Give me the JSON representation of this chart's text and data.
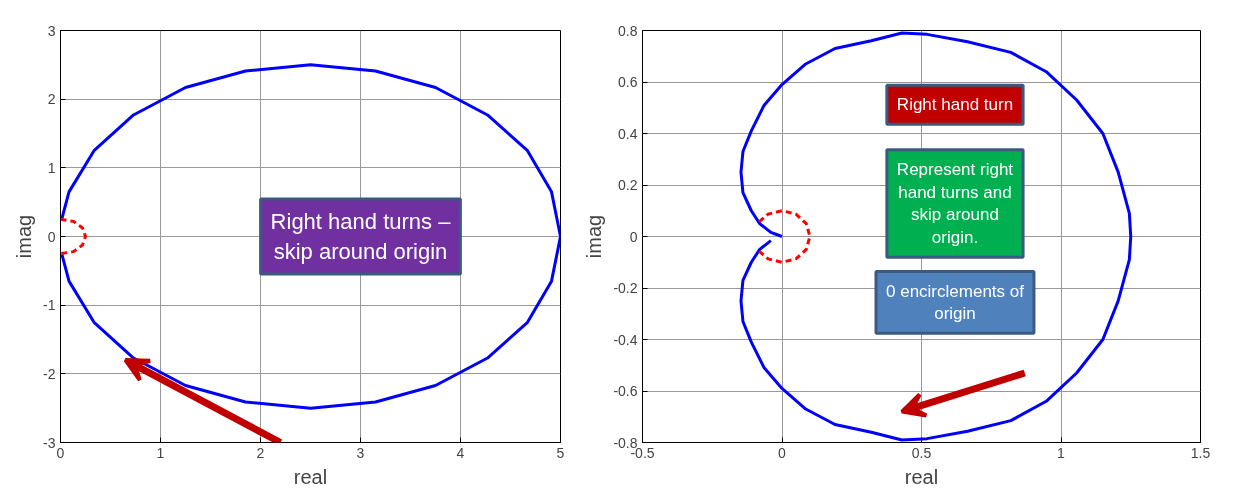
{
  "chart_data": [
    {
      "type": "line",
      "xlabel": "real",
      "ylabel": "imag",
      "xlim": [
        0,
        5
      ],
      "ylim": [
        -3,
        3
      ],
      "xticks": [
        0,
        1,
        2,
        3,
        4,
        5
      ],
      "yticks": [
        -3,
        -2,
        -1,
        0,
        1,
        2,
        3
      ],
      "grid": true,
      "series": [
        {
          "color": "#0000ff",
          "line_style": "solid",
          "x": [
            0.014,
            0.085,
            0.335,
            0.73,
            1.25,
            1.85,
            2.5,
            3.15,
            3.75,
            4.27,
            4.67,
            4.91,
            5.0,
            4.91,
            4.67,
            4.27,
            3.75,
            3.15,
            2.5,
            1.85,
            1.25,
            0.73,
            0.335,
            0.085,
            0.014
          ],
          "values": [
            0.26,
            0.65,
            1.25,
            1.77,
            2.17,
            2.41,
            2.5,
            2.41,
            2.17,
            1.77,
            1.25,
            0.65,
            0,
            -0.65,
            -1.25,
            -1.77,
            -2.17,
            -2.41,
            -2.5,
            -2.41,
            -2.17,
            -1.77,
            -1.25,
            -0.65,
            -0.26
          ]
        },
        {
          "color": "#ff0000",
          "line_style": "dashed",
          "x": [
            0,
            0.13,
            0.22,
            0.25,
            0.22,
            0.13,
            0
          ],
          "values": [
            0.25,
            0.22,
            0.125,
            0,
            -0.125,
            -0.22,
            -0.25
          ]
        }
      ],
      "annotations": [
        "Right hand turns – skip around origin"
      ]
    },
    {
      "type": "line",
      "xlabel": "real",
      "ylabel": "imag",
      "xlim": [
        -0.5,
        1.5
      ],
      "ylim": [
        -0.8,
        0.8
      ],
      "xticks": [
        -0.5,
        0,
        0.5,
        1,
        1.5
      ],
      "yticks": [
        -0.8,
        -0.6,
        -0.4,
        -0.2,
        0,
        0.2,
        0.4,
        0.6,
        0.8
      ],
      "grid": true,
      "series": [
        {
          "color": "#0000ff",
          "line_style": "solid",
          "x": [
            0,
            -0.04,
            -0.08,
            -0.11,
            -0.14,
            -0.147,
            -0.14,
            -0.11,
            -0.064,
            0,
            0.085,
            0.19,
            0.32,
            0.43,
            0.52,
            0.665,
            0.82,
            0.947,
            1.056,
            1.15,
            1.205,
            1.245,
            1.25,
            1.245,
            1.205,
            1.15,
            1.056,
            0.947,
            0.82,
            0.665,
            0.52,
            0.43,
            0.32,
            0.19,
            0.085,
            0,
            -0.064,
            -0.11,
            -0.14,
            -0.147,
            -0.14,
            -0.11,
            -0.08,
            -0.04
          ],
          "values": [
            0,
            0.016,
            0.05,
            0.1,
            0.17,
            0.25,
            0.33,
            0.41,
            0.51,
            0.59,
            0.67,
            0.73,
            0.76,
            0.79,
            0.785,
            0.756,
            0.715,
            0.64,
            0.53,
            0.4,
            0.25,
            0.09,
            0,
            -0.09,
            -0.25,
            -0.4,
            -0.53,
            -0.64,
            -0.715,
            -0.756,
            -0.785,
            -0.79,
            -0.76,
            -0.73,
            -0.67,
            -0.59,
            -0.51,
            -0.41,
            -0.33,
            -0.25,
            -0.17,
            -0.1,
            -0.05,
            -0.016
          ]
        },
        {
          "color": "#ff0000",
          "line_style": "dashed",
          "x": [
            -0.082,
            -0.05,
            0,
            0.05,
            0.087,
            0.1,
            0.087,
            0.05,
            0,
            -0.05,
            -0.082
          ],
          "values": [
            0.057,
            0.087,
            0.1,
            0.087,
            0.05,
            0,
            -0.05,
            -0.087,
            -0.1,
            -0.087,
            -0.057
          ]
        }
      ],
      "annotations": [
        "Right hand turn",
        "Represent right hand turns and skip around origin.",
        "0 encirclements of origin"
      ]
    }
  ]
}
